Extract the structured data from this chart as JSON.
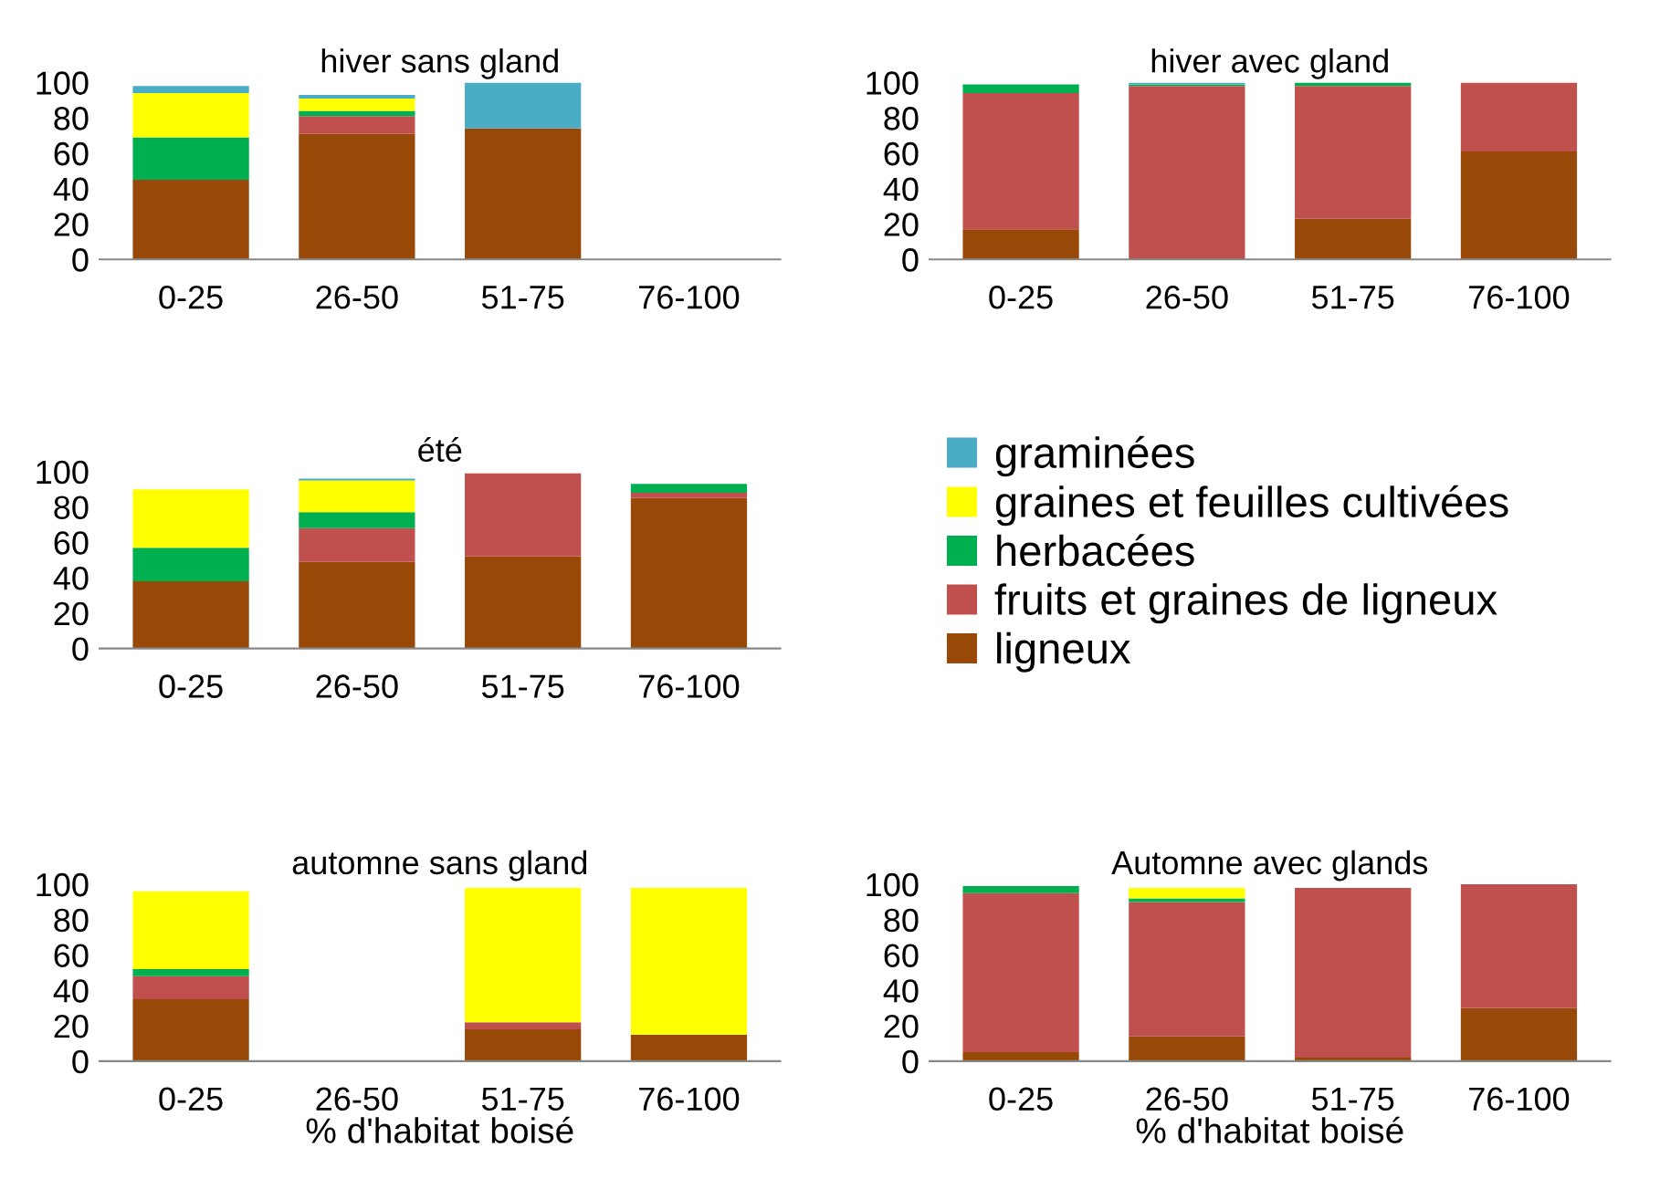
{
  "chart_data": [
    {
      "type": "bar",
      "title": "hiver sans gland",
      "stacked": true,
      "legend": "right",
      "categories": [
        "0-25",
        "26-50",
        "51-75",
        "76-100"
      ],
      "ylim": [
        0,
        100
      ],
      "yticks": [
        0,
        20,
        40,
        60,
        80,
        100
      ],
      "grid": false,
      "series": [
        {
          "name": "ligneux",
          "color": "#984807",
          "values": [
            45,
            71,
            74,
            null
          ]
        },
        {
          "name": "fruits et graines de ligneux",
          "color": "#c0504d",
          "values": [
            0,
            10,
            0,
            null
          ]
        },
        {
          "name": "herbacées",
          "color": "#00b050",
          "values": [
            24,
            3,
            0,
            null
          ]
        },
        {
          "name": "graines et feuilles cultivées",
          "color": "#ffff00",
          "values": [
            25,
            7,
            0,
            null
          ]
        },
        {
          "name": "graminées",
          "color": "#4bacc6",
          "values": [
            4,
            2,
            26,
            null
          ]
        }
      ]
    },
    {
      "type": "bar",
      "title": "hiver avec gland",
      "stacked": true,
      "categories": [
        "0-25",
        "26-50",
        "51-75",
        "76-100"
      ],
      "ylim": [
        0,
        100
      ],
      "yticks": [
        0,
        20,
        40,
        60,
        80,
        100
      ],
      "grid": false,
      "series": [
        {
          "color": "#984807",
          "values": [
            17,
            0,
            23,
            61
          ]
        },
        {
          "color": "#c0504d",
          "values": [
            77,
            98,
            75,
            39
          ]
        },
        {
          "color": "#00b050",
          "values": [
            5,
            1,
            2,
            0
          ]
        },
        {
          "color": "#ffff00",
          "values": [
            0,
            0,
            0,
            0
          ]
        },
        {
          "color": "#4bacc6",
          "values": [
            0,
            1,
            0,
            0
          ]
        }
      ]
    },
    {
      "type": "bar",
      "title": "été",
      "stacked": true,
      "categories": [
        "0-25",
        "26-50",
        "51-75",
        "76-100"
      ],
      "ylim": [
        0,
        100
      ],
      "yticks": [
        0,
        20,
        40,
        60,
        80,
        100
      ],
      "grid": false,
      "series": [
        {
          "color": "#984807",
          "values": [
            38,
            49,
            52,
            85
          ]
        },
        {
          "color": "#c0504d",
          "values": [
            0,
            19,
            47,
            3
          ]
        },
        {
          "color": "#00b050",
          "values": [
            19,
            9,
            0,
            5
          ]
        },
        {
          "color": "#ffff00",
          "values": [
            33,
            18,
            0,
            0
          ]
        },
        {
          "color": "#4bacc6",
          "values": [
            0,
            1,
            0,
            0
          ]
        }
      ]
    },
    {
      "type": "bar",
      "title": "automne sans gland",
      "xlabel": "% d'habitat boisé",
      "stacked": true,
      "categories": [
        "0-25",
        "26-50",
        "51-75",
        "76-100"
      ],
      "ylim": [
        0,
        100
      ],
      "yticks": [
        0,
        20,
        40,
        60,
        80,
        100
      ],
      "grid": false,
      "series": [
        {
          "color": "#984807",
          "values": [
            35,
            null,
            18,
            15
          ]
        },
        {
          "color": "#c0504d",
          "values": [
            13,
            null,
            4,
            0
          ]
        },
        {
          "color": "#00b050",
          "values": [
            4,
            null,
            0,
            0
          ]
        },
        {
          "color": "#ffff00",
          "values": [
            44,
            null,
            76,
            83
          ]
        },
        {
          "color": "#4bacc6",
          "values": [
            0,
            null,
            0,
            0
          ]
        }
      ]
    },
    {
      "type": "bar",
      "title": "Automne avec glands",
      "xlabel": "% d'habitat boisé",
      "stacked": true,
      "categories": [
        "0-25",
        "26-50",
        "51-75",
        "76-100"
      ],
      "ylim": [
        0,
        100
      ],
      "yticks": [
        0,
        20,
        40,
        60,
        80,
        100
      ],
      "grid": false,
      "series": [
        {
          "color": "#984807",
          "values": [
            5,
            14,
            2,
            30
          ]
        },
        {
          "color": "#c0504d",
          "values": [
            90,
            76,
            96,
            70
          ]
        },
        {
          "color": "#00b050",
          "values": [
            4,
            2,
            0,
            0
          ]
        },
        {
          "color": "#ffff00",
          "values": [
            0,
            6,
            0,
            0
          ]
        },
        {
          "color": "#4bacc6",
          "values": [
            0,
            0,
            0,
            0
          ]
        }
      ]
    }
  ]
}
